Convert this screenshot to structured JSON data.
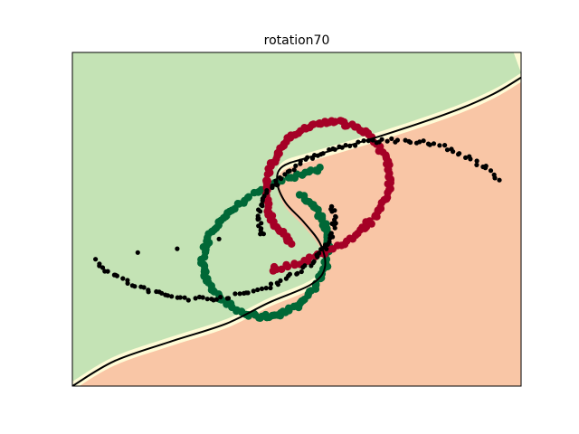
{
  "chart_data": {
    "type": "scatter",
    "title": "rotation70",
    "xlabel": "",
    "ylabel": "",
    "axes_ticks": false,
    "grid": false,
    "legend": "none",
    "xlim": [
      -1.6,
      1.6
    ],
    "ylim": [
      -1.2,
      1.2
    ],
    "colors": {
      "region_green": "#c4e3b5",
      "region_orange": "#f9c6a6",
      "region_pale": "#fffbd6",
      "class_green": "#006837",
      "class_red": "#a50026",
      "rotated_points": "#000000",
      "boundary": "#000000"
    },
    "decision_boundary": [
      [
        -1.6,
        -1.2
      ],
      [
        -1.3,
        -1.02
      ],
      [
        -0.9,
        -0.88
      ],
      [
        -0.5,
        -0.75
      ],
      [
        -0.2,
        -0.6
      ],
      [
        0.1,
        -0.47
      ],
      [
        0.2,
        -0.35
      ],
      [
        0.17,
        -0.18
      ],
      [
        0.05,
        -0.02
      ],
      [
        -0.08,
        0.12
      ],
      [
        -0.14,
        0.27
      ],
      [
        -0.1,
        0.38
      ],
      [
        0.1,
        0.45
      ],
      [
        0.6,
        0.6
      ],
      [
        1.1,
        0.77
      ],
      [
        1.4,
        0.9
      ],
      [
        1.6,
        1.02
      ]
    ],
    "series": [
      {
        "role": "class-1",
        "color": "#006837",
        "marker_radius": 4.2,
        "points": [
          [
            0.18,
            0.36
          ],
          [
            0.08,
            0.34
          ],
          [
            -0.02,
            0.31
          ],
          [
            -0.12,
            0.27
          ],
          [
            -0.22,
            0.23
          ],
          [
            -0.31,
            0.18
          ],
          [
            -0.39,
            0.13
          ],
          [
            -0.46,
            0.07
          ],
          [
            -0.52,
            0.02
          ],
          [
            -0.57,
            -0.04
          ],
          [
            -0.61,
            -0.1
          ],
          [
            -0.64,
            -0.16
          ],
          [
            -0.66,
            -0.23
          ],
          [
            -0.67,
            -0.3
          ],
          [
            -0.66,
            -0.37
          ],
          [
            -0.64,
            -0.44
          ],
          [
            -0.6,
            -0.5
          ],
          [
            -0.55,
            -0.56
          ],
          [
            -0.5,
            -0.61
          ],
          [
            -0.44,
            -0.65
          ],
          [
            -0.37,
            -0.68
          ],
          [
            -0.3,
            -0.7
          ],
          [
            -0.23,
            -0.7
          ],
          [
            -0.16,
            -0.69
          ],
          [
            -0.09,
            -0.67
          ],
          [
            -0.03,
            -0.64
          ],
          [
            0.03,
            -0.6
          ],
          [
            0.08,
            -0.55
          ],
          [
            0.12,
            -0.5
          ],
          [
            0.16,
            -0.44
          ],
          [
            0.19,
            -0.38
          ],
          [
            0.21,
            -0.31
          ],
          [
            0.22,
            -0.24
          ],
          [
            0.22,
            -0.17
          ],
          [
            0.21,
            -0.1
          ],
          [
            0.19,
            -0.03
          ],
          [
            0.16,
            0.03
          ],
          [
            0.12,
            0.09
          ],
          [
            0.07,
            0.14
          ],
          [
            0.01,
            0.18
          ]
        ]
      },
      {
        "role": "class-2",
        "color": "#a50026",
        "marker_radius": 4.2,
        "points": [
          [
            -0.18,
            -0.36
          ],
          [
            -0.08,
            -0.34
          ],
          [
            0.02,
            -0.31
          ],
          [
            0.12,
            -0.27
          ],
          [
            0.22,
            -0.23
          ],
          [
            0.31,
            -0.18
          ],
          [
            0.39,
            -0.13
          ],
          [
            0.46,
            -0.07
          ],
          [
            0.52,
            -0.02
          ],
          [
            0.57,
            0.04
          ],
          [
            0.61,
            0.1
          ],
          [
            0.64,
            0.16
          ],
          [
            0.66,
            0.23
          ],
          [
            0.67,
            0.3
          ],
          [
            0.66,
            0.37
          ],
          [
            0.64,
            0.44
          ],
          [
            0.6,
            0.5
          ],
          [
            0.55,
            0.56
          ],
          [
            0.5,
            0.61
          ],
          [
            0.44,
            0.65
          ],
          [
            0.37,
            0.68
          ],
          [
            0.3,
            0.7
          ],
          [
            0.23,
            0.7
          ],
          [
            0.16,
            0.69
          ],
          [
            0.09,
            0.67
          ],
          [
            0.03,
            0.64
          ],
          [
            -0.03,
            0.6
          ],
          [
            -0.08,
            0.55
          ],
          [
            -0.12,
            0.5
          ],
          [
            -0.16,
            0.44
          ],
          [
            -0.19,
            0.38
          ],
          [
            -0.21,
            0.31
          ],
          [
            -0.22,
            0.24
          ],
          [
            -0.22,
            0.17
          ],
          [
            -0.21,
            0.1
          ],
          [
            -0.19,
            0.03
          ],
          [
            -0.16,
            -0.03
          ],
          [
            -0.12,
            -0.09
          ],
          [
            -0.07,
            -0.14
          ],
          [
            -0.01,
            -0.18
          ]
        ]
      },
      {
        "role": "rotated",
        "color": "#000000",
        "marker_radius": 2.6,
        "points": [
          [
            1.44,
            0.29
          ],
          [
            1.36,
            0.36
          ],
          [
            1.27,
            0.42
          ],
          [
            1.17,
            0.47
          ],
          [
            1.07,
            0.51
          ],
          [
            0.96,
            0.54
          ],
          [
            0.85,
            0.56
          ],
          [
            0.73,
            0.57
          ],
          [
            0.62,
            0.57
          ],
          [
            0.5,
            0.56
          ],
          [
            0.39,
            0.54
          ],
          [
            0.28,
            0.51
          ],
          [
            0.17,
            0.47
          ],
          [
            0.08,
            0.43
          ],
          [
            -0.01,
            0.38
          ],
          [
            -0.09,
            0.32
          ],
          [
            -0.15,
            0.26
          ],
          [
            -0.2,
            0.2
          ],
          [
            -0.24,
            0.14
          ],
          [
            -0.26,
            0.07
          ],
          [
            -0.27,
            0.0
          ],
          [
            -0.26,
            -0.06
          ],
          [
            -0.24,
            -0.11
          ],
          [
            -1.44,
            -0.29
          ],
          [
            -1.36,
            -0.36
          ],
          [
            -1.27,
            -0.42
          ],
          [
            -1.17,
            -0.47
          ],
          [
            -1.07,
            -0.51
          ],
          [
            -0.96,
            -0.54
          ],
          [
            -0.85,
            -0.56
          ],
          [
            -0.73,
            -0.57
          ],
          [
            -0.62,
            -0.57
          ],
          [
            -0.5,
            -0.56
          ],
          [
            -0.39,
            -0.54
          ],
          [
            -0.28,
            -0.51
          ],
          [
            -0.17,
            -0.47
          ],
          [
            -0.08,
            -0.43
          ],
          [
            0.01,
            -0.38
          ],
          [
            0.09,
            -0.32
          ],
          [
            0.15,
            -0.26
          ],
          [
            0.2,
            -0.2
          ],
          [
            0.24,
            -0.14
          ],
          [
            0.26,
            -0.07
          ],
          [
            0.27,
            0.0
          ],
          [
            0.26,
            0.06
          ],
          [
            0.24,
            0.11
          ]
        ]
      }
    ]
  }
}
